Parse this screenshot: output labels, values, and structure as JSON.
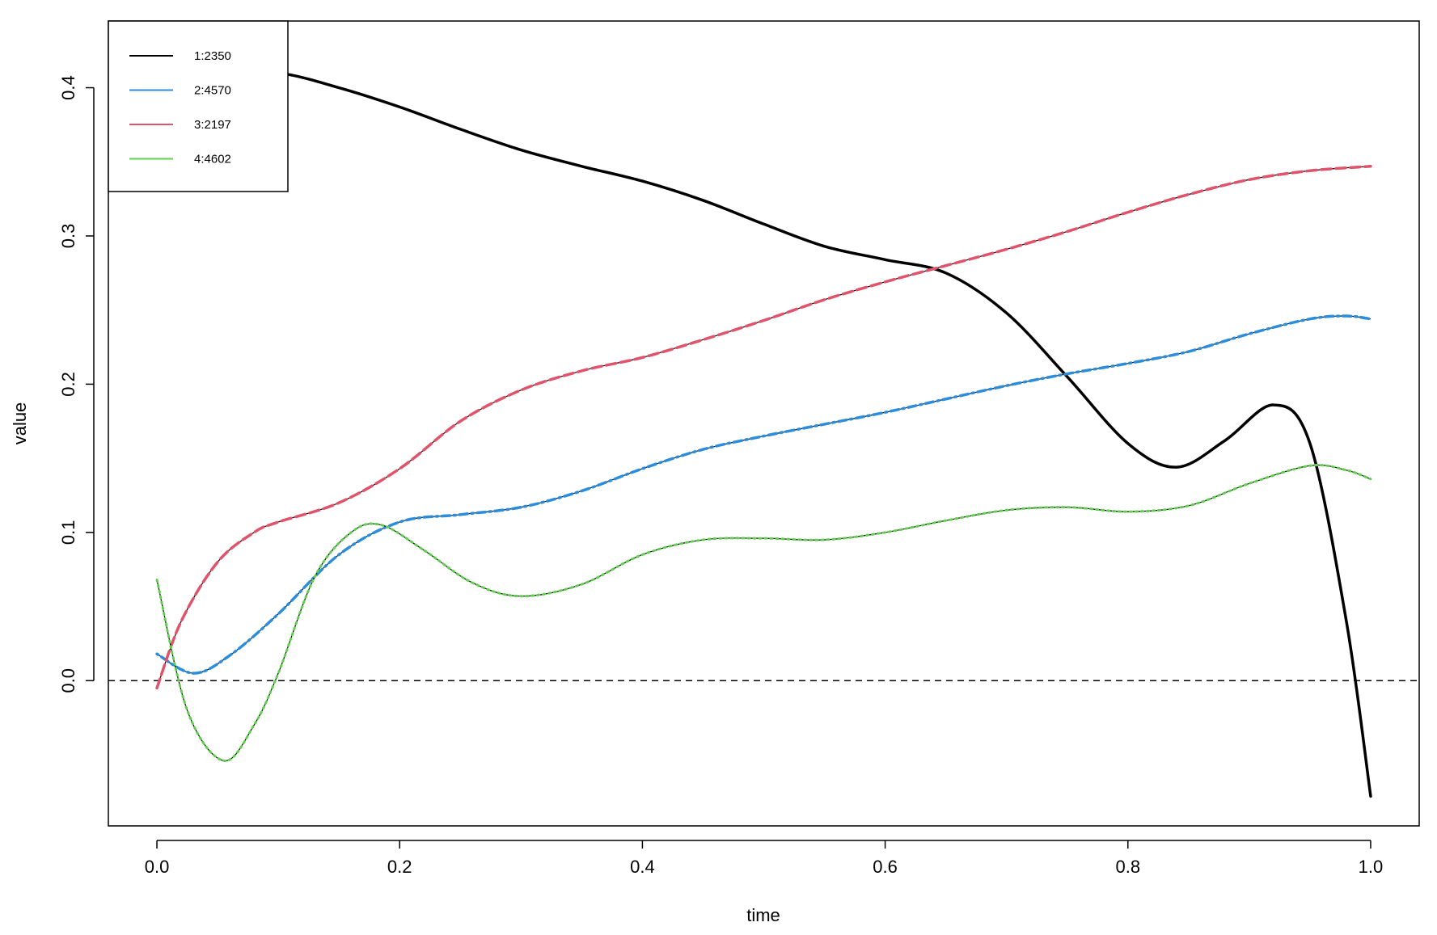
{
  "chart_data": {
    "type": "line",
    "xlabel": "time",
    "ylabel": "value",
    "xlim": [
      -0.04,
      1.04
    ],
    "ylim": [
      -0.098,
      0.445
    ],
    "x_ticks": [
      0.0,
      0.2,
      0.4,
      0.6,
      0.8,
      1.0
    ],
    "x_tick_labels": [
      "0.0",
      "0.2",
      "0.4",
      "0.6",
      "0.8",
      "1.0"
    ],
    "y_ticks": [
      0.0,
      0.1,
      0.2,
      0.3,
      0.4
    ],
    "y_tick_labels": [
      "0.0",
      "0.1",
      "0.2",
      "0.3",
      "0.4"
    ],
    "reference_line": {
      "y": 0.0,
      "style": "dashed",
      "color": "#000000"
    },
    "legend_position": "top-left",
    "grid": false,
    "series": [
      {
        "name": "1:2350",
        "color": "#000000",
        "line_style": "solid",
        "x": [
          0.0,
          0.05,
          0.1,
          0.15,
          0.2,
          0.25,
          0.3,
          0.35,
          0.4,
          0.45,
          0.5,
          0.55,
          0.6,
          0.65,
          0.7,
          0.75,
          0.8,
          0.84,
          0.88,
          0.92,
          0.95,
          0.98,
          1.0
        ],
        "y": [
          0.41,
          0.41,
          0.41,
          0.4,
          0.387,
          0.372,
          0.358,
          0.347,
          0.337,
          0.324,
          0.308,
          0.293,
          0.284,
          0.275,
          0.248,
          0.205,
          0.16,
          0.144,
          0.162,
          0.186,
          0.16,
          0.04,
          -0.078
        ]
      },
      {
        "name": "2:4570",
        "color": "#2C8DDC",
        "line_style": "dotdash",
        "x": [
          0.0,
          0.03,
          0.06,
          0.1,
          0.15,
          0.2,
          0.25,
          0.3,
          0.35,
          0.4,
          0.45,
          0.5,
          0.55,
          0.6,
          0.65,
          0.7,
          0.75,
          0.8,
          0.85,
          0.9,
          0.95,
          0.98,
          1.0
        ],
        "y": [
          0.018,
          0.005,
          0.017,
          0.045,
          0.085,
          0.107,
          0.112,
          0.117,
          0.128,
          0.143,
          0.156,
          0.165,
          0.173,
          0.181,
          0.19,
          0.199,
          0.207,
          0.214,
          0.222,
          0.234,
          0.244,
          0.246,
          0.244
        ]
      },
      {
        "name": "3:2197",
        "color": "#DF536B",
        "line_style": "dashed",
        "x": [
          0.0,
          0.02,
          0.05,
          0.08,
          0.1,
          0.15,
          0.2,
          0.25,
          0.3,
          0.35,
          0.4,
          0.45,
          0.5,
          0.55,
          0.6,
          0.65,
          0.7,
          0.75,
          0.8,
          0.85,
          0.9,
          0.95,
          1.0
        ],
        "y": [
          -0.005,
          0.04,
          0.08,
          0.1,
          0.107,
          0.12,
          0.143,
          0.175,
          0.196,
          0.209,
          0.218,
          0.23,
          0.243,
          0.257,
          0.269,
          0.28,
          0.291,
          0.303,
          0.316,
          0.328,
          0.338,
          0.344,
          0.347
        ]
      },
      {
        "name": "4:4602",
        "color": "#61D04F",
        "line_style": "dotted",
        "x": [
          0.0,
          0.025,
          0.055,
          0.08,
          0.1,
          0.13,
          0.16,
          0.185,
          0.22,
          0.26,
          0.3,
          0.35,
          0.4,
          0.45,
          0.5,
          0.55,
          0.6,
          0.65,
          0.7,
          0.75,
          0.8,
          0.85,
          0.9,
          0.95,
          0.98,
          1.0
        ],
        "y": [
          0.068,
          -0.02,
          -0.054,
          -0.03,
          0.005,
          0.07,
          0.1,
          0.105,
          0.088,
          0.066,
          0.057,
          0.065,
          0.085,
          0.095,
          0.096,
          0.095,
          0.1,
          0.108,
          0.115,
          0.117,
          0.114,
          0.118,
          0.133,
          0.145,
          0.142,
          0.136
        ]
      }
    ]
  }
}
